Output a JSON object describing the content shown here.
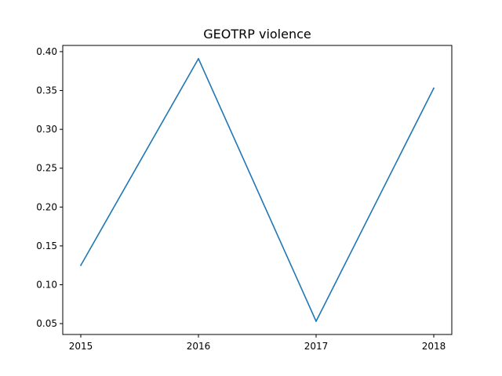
{
  "chart_data": {
    "type": "line",
    "title": "GEOTRP violence",
    "xlabel": "",
    "ylabel": "",
    "x": [
      "2015",
      "2016",
      "2017",
      "2018"
    ],
    "series": [
      {
        "values": [
          0.125,
          0.391,
          0.053,
          0.353
        ]
      }
    ],
    "ylim": [
      0.036,
      0.408
    ],
    "yticks": [
      "0.05",
      "0.10",
      "0.15",
      "0.20",
      "0.25",
      "0.30",
      "0.35",
      "0.40"
    ],
    "grid": false,
    "line_color": "#1f77b4"
  }
}
